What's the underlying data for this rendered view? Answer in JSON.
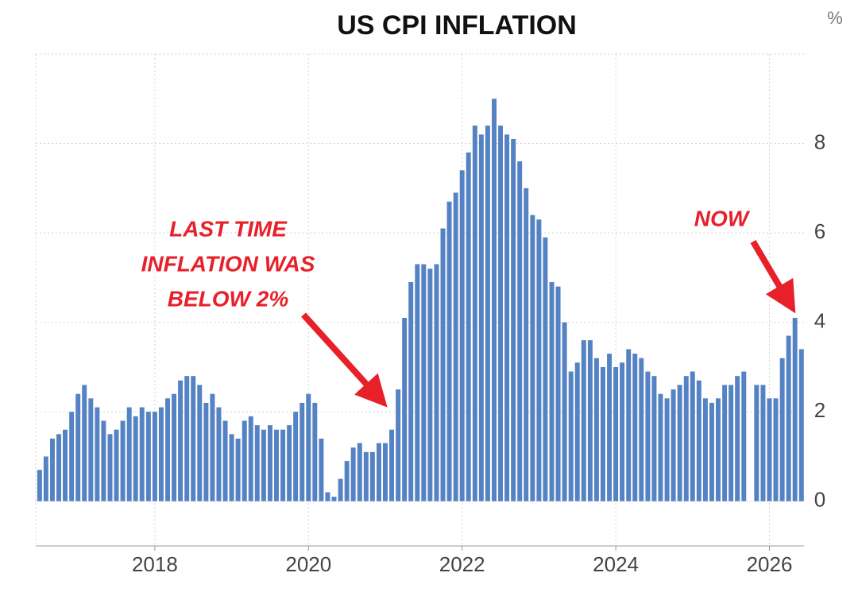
{
  "chart_data": {
    "type": "bar",
    "title": "US CPI INFLATION",
    "ylabel": "%",
    "color": "#5582c3",
    "x": [
      2016.5,
      2016.583,
      2016.667,
      2016.75,
      2016.833,
      2016.917,
      2017,
      2017.083,
      2017.167,
      2017.25,
      2017.333,
      2017.417,
      2017.5,
      2017.583,
      2017.667,
      2017.75,
      2017.833,
      2017.917,
      2018,
      2018.083,
      2018.167,
      2018.25,
      2018.333,
      2018.417,
      2018.5,
      2018.583,
      2018.667,
      2018.75,
      2018.833,
      2018.917,
      2019,
      2019.083,
      2019.167,
      2019.25,
      2019.333,
      2019.417,
      2019.5,
      2019.583,
      2019.667,
      2019.75,
      2019.833,
      2019.917,
      2020,
      2020.083,
      2020.167,
      2020.25,
      2020.333,
      2020.417,
      2020.5,
      2020.583,
      2020.667,
      2020.75,
      2020.833,
      2020.917,
      2021,
      2021.083,
      2021.167,
      2021.25,
      2021.333,
      2021.417,
      2021.5,
      2021.583,
      2021.667,
      2021.75,
      2021.833,
      2021.917,
      2022,
      2022.083,
      2022.167,
      2022.25,
      2022.333,
      2022.417,
      2022.5,
      2022.583,
      2022.667,
      2022.75,
      2022.833,
      2022.917,
      2023,
      2023.083,
      2023.167,
      2023.25,
      2023.333,
      2023.417,
      2023.5,
      2023.583,
      2023.667,
      2023.75,
      2023.833,
      2023.917,
      2024,
      2024.083,
      2024.167,
      2024.25,
      2024.333,
      2024.417,
      2024.5,
      2024.583,
      2024.667,
      2024.75,
      2024.833,
      2024.917,
      2025,
      2025.083,
      2025.167,
      2025.25,
      2025.333,
      2025.417,
      2025.5,
      2025.583,
      2025.667,
      2025.75,
      2025.833,
      2025.917,
      2026,
      2026.083,
      2026.167,
      2026.25,
      2026.333,
      2026.417
    ],
    "values": [
      0.7,
      1.0,
      1.4,
      1.5,
      1.6,
      2.0,
      2.4,
      2.6,
      2.3,
      2.1,
      1.8,
      1.5,
      1.6,
      1.8,
      2.1,
      1.9,
      2.1,
      2.0,
      2.0,
      2.1,
      2.3,
      2.4,
      2.7,
      2.8,
      2.8,
      2.6,
      2.2,
      2.4,
      2.1,
      1.8,
      1.5,
      1.4,
      1.8,
      1.9,
      1.7,
      1.6,
      1.7,
      1.6,
      1.6,
      1.7,
      2.0,
      2.2,
      2.4,
      2.2,
      1.4,
      0.2,
      0.1,
      0.5,
      0.9,
      1.2,
      1.3,
      1.1,
      1.1,
      1.3,
      1.3,
      1.6,
      2.5,
      4.1,
      4.9,
      5.3,
      5.3,
      5.2,
      5.3,
      6.1,
      6.7,
      6.9,
      7.4,
      7.8,
      8.4,
      8.2,
      8.4,
      9.0,
      8.4,
      8.2,
      8.1,
      7.6,
      7.0,
      6.4,
      6.3,
      5.9,
      4.9,
      4.8,
      4.0,
      2.9,
      3.1,
      3.6,
      3.6,
      3.2,
      3.0,
      3.3,
      3.0,
      3.1,
      3.4,
      3.3,
      3.2,
      2.9,
      2.8,
      2.4,
      2.3,
      2.5,
      2.6,
      2.8,
      2.9,
      2.7,
      2.3,
      2.2,
      2.3,
      2.6,
      2.6,
      2.8,
      2.9,
      null,
      2.6,
      2.6,
      2.3,
      2.3,
      3.2,
      3.7,
      4.1,
      3.4
    ],
    "xlim": [
      2016.45,
      2026.45
    ],
    "xticks": [
      2018,
      2020,
      2022,
      2024,
      2026
    ],
    "ylim": [
      -1,
      10
    ],
    "yticks": [
      0,
      2,
      4,
      6,
      8
    ],
    "grid": true,
    "annotations": [
      {
        "lines": [
          "LAST TIME",
          "INFLATION WAS",
          "BELOW 2%"
        ]
      },
      {
        "lines": [
          "NOW"
        ]
      }
    ]
  }
}
